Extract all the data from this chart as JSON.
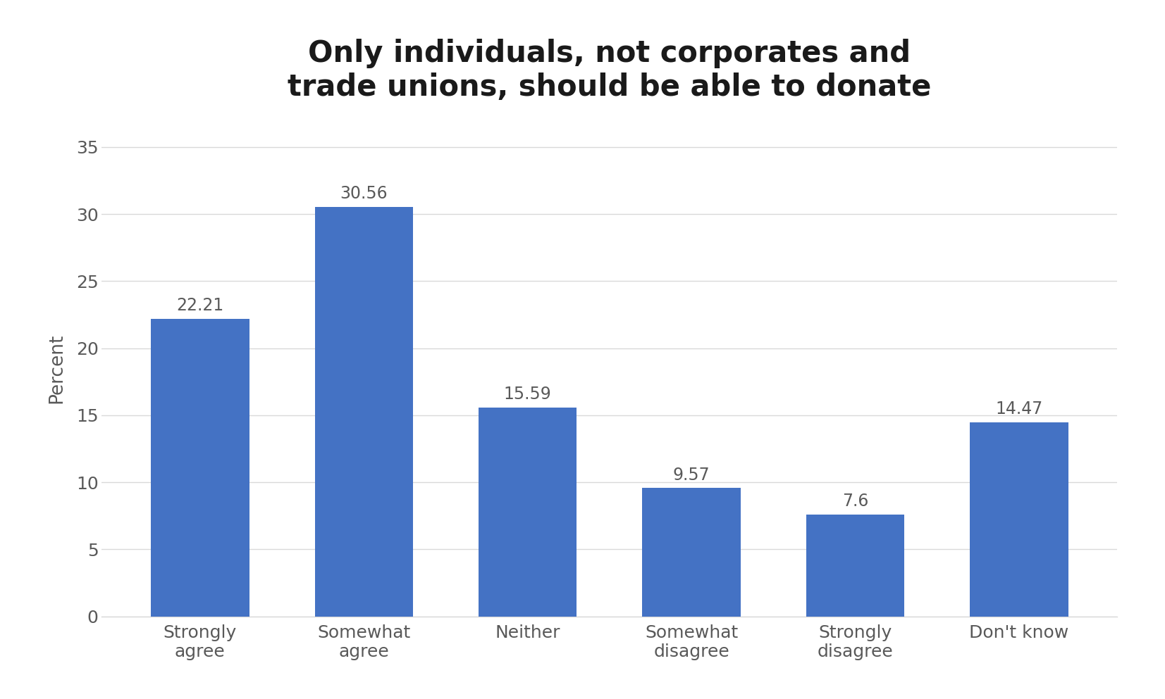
{
  "title": "Only individuals, not corporates and\ntrade unions, should be able to donate",
  "categories": [
    "Strongly\nagree",
    "Somewhat\nagree",
    "Neither",
    "Somewhat\ndisagree",
    "Strongly\ndisagree",
    "Don't know"
  ],
  "values": [
    22.21,
    30.56,
    15.59,
    9.57,
    7.6,
    14.47
  ],
  "bar_color": "#4472C4",
  "ylabel": "Percent",
  "ylim": [
    0,
    37
  ],
  "yticks": [
    0,
    5,
    10,
    15,
    20,
    25,
    30,
    35
  ],
  "title_fontsize": 30,
  "label_fontsize": 19,
  "tick_fontsize": 18,
  "bar_label_fontsize": 17,
  "background_color": "#ffffff",
  "grid_color": "#d9d9d9",
  "tick_color": "#595959",
  "bar_width": 0.6
}
